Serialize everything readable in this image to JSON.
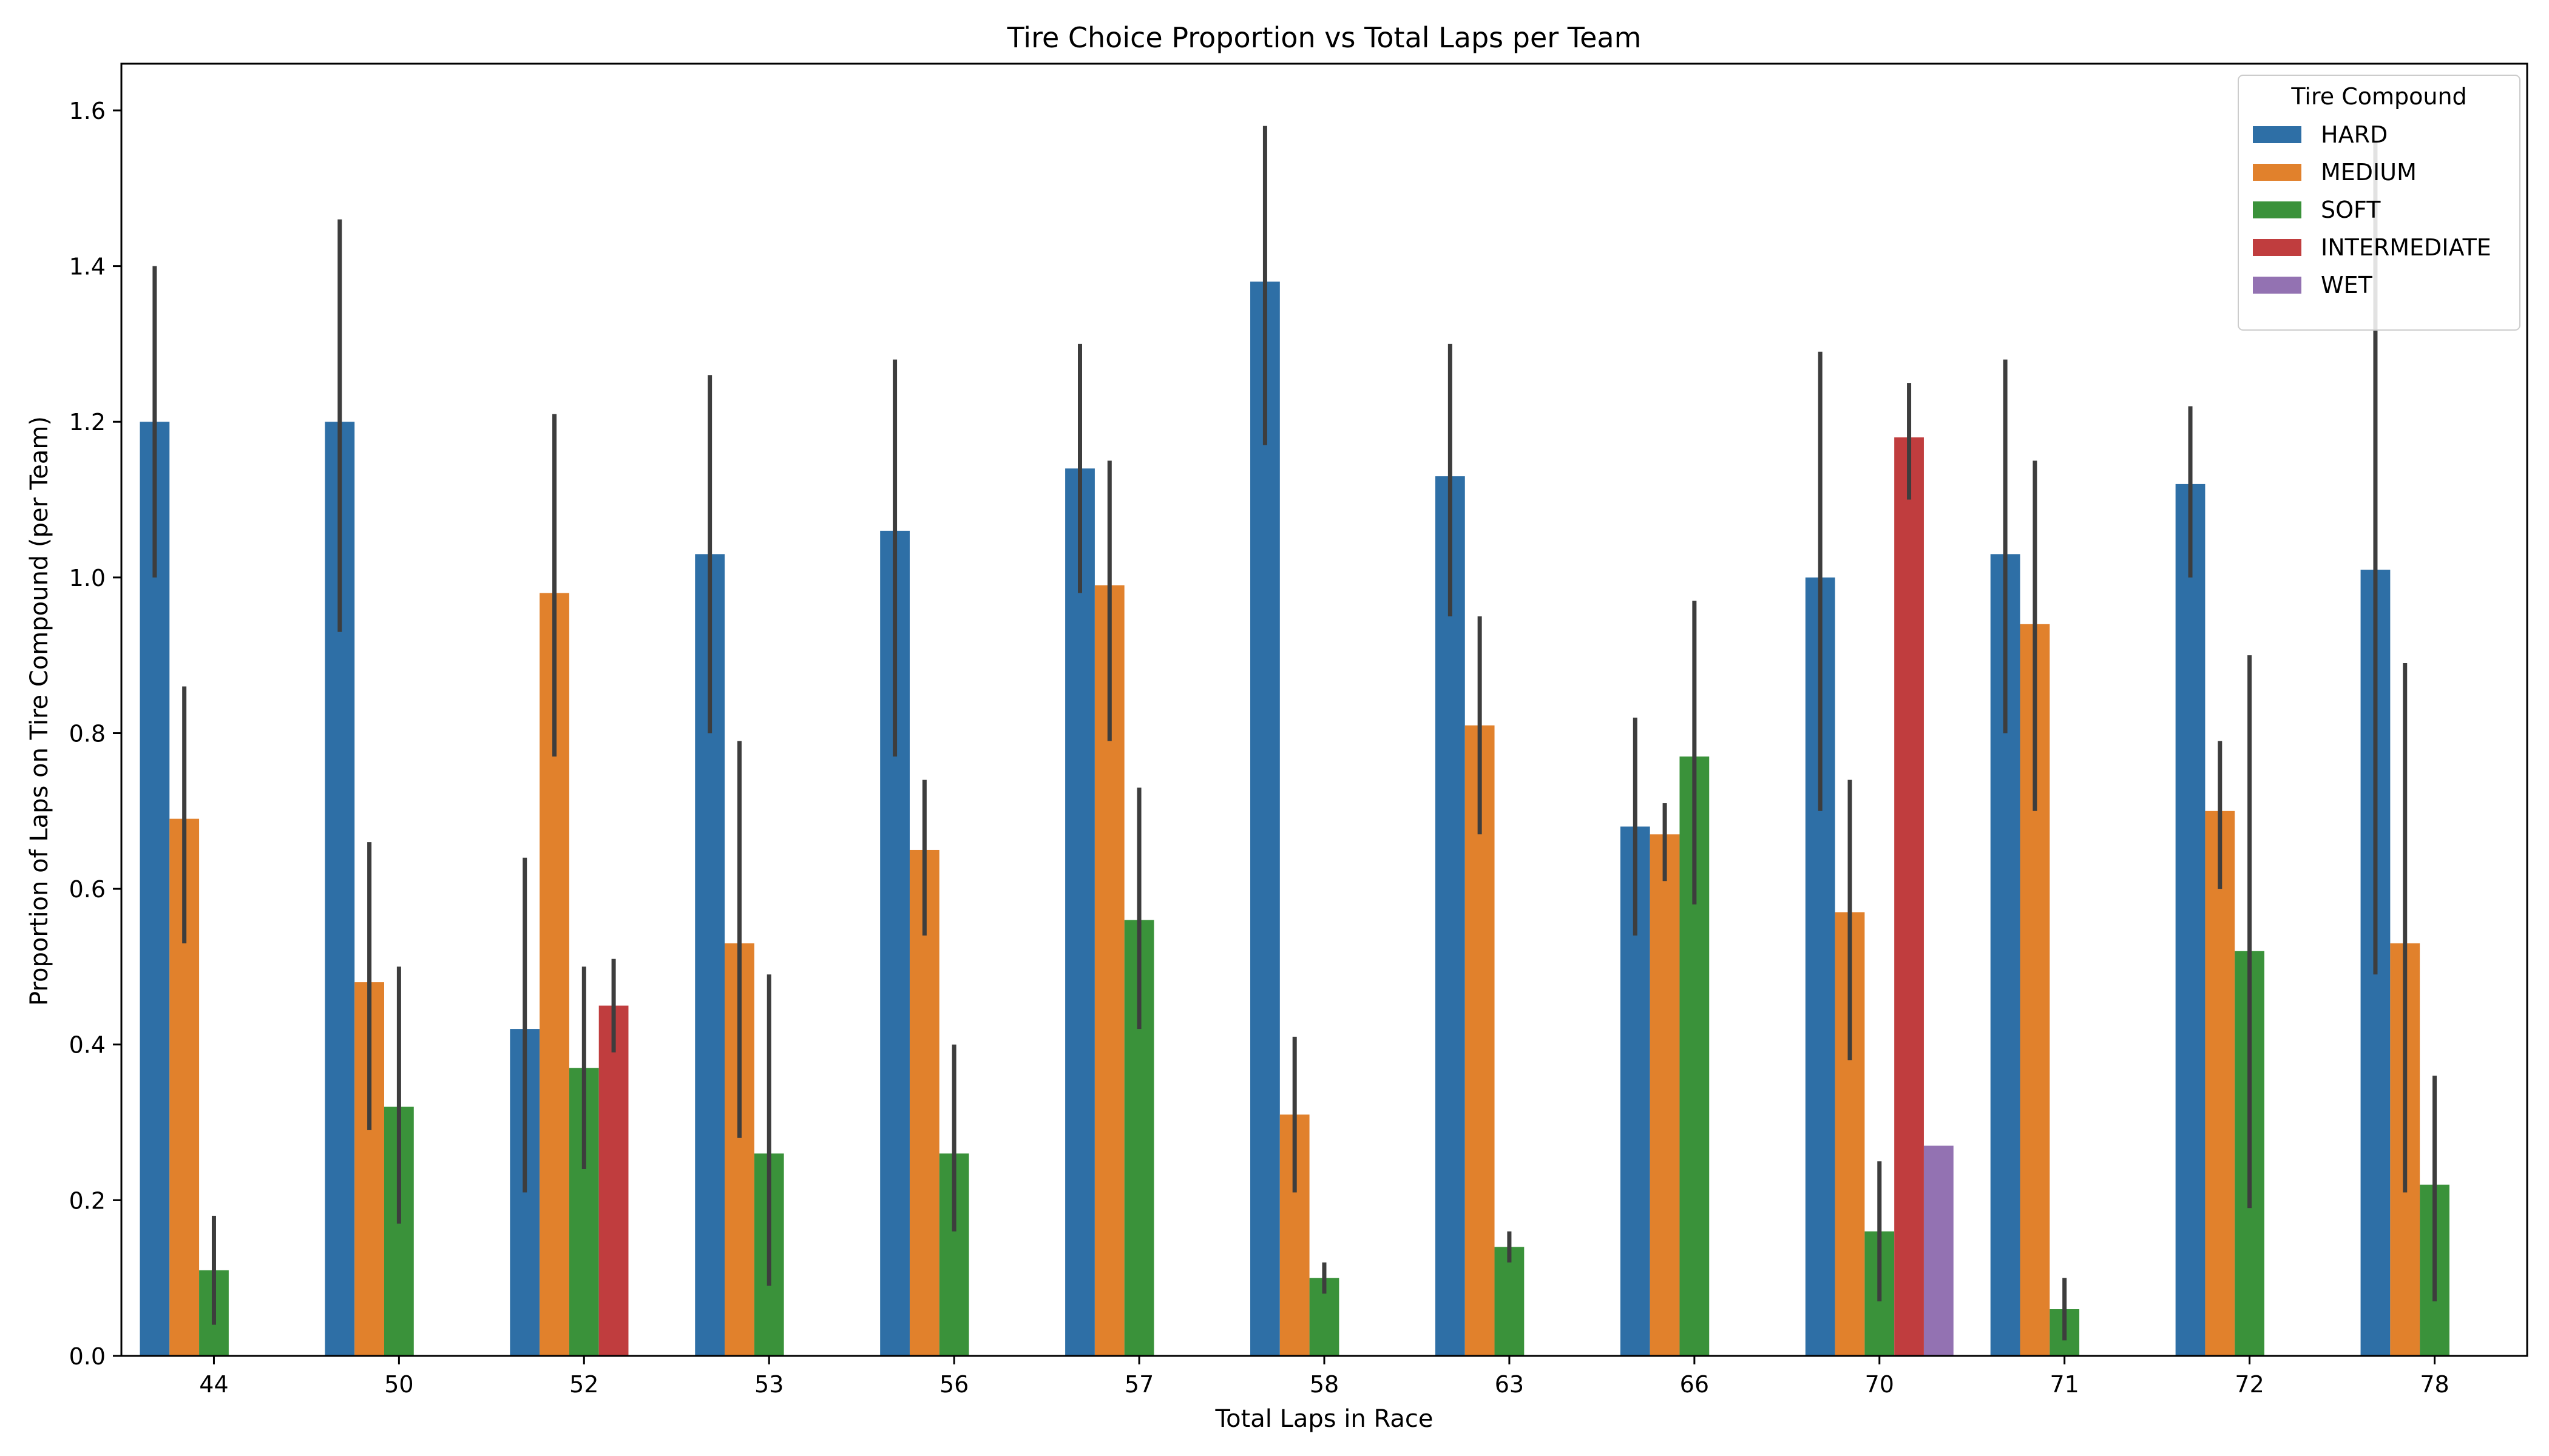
{
  "chart_data": {
    "type": "bar",
    "title": "Tire Choice Proportion vs Total Laps per Team",
    "xlabel": "Total Laps in Race",
    "ylabel": "Proportion of Laps on Tire Compound (per Team)",
    "categories": [
      "44",
      "50",
      "52",
      "53",
      "56",
      "57",
      "58",
      "63",
      "66",
      "70",
      "71",
      "72",
      "78"
    ],
    "ylim": [
      0,
      1.66
    ],
    "yticks": [
      0.0,
      0.2,
      0.4,
      0.6,
      0.8,
      1.0,
      1.2,
      1.4,
      1.6
    ],
    "ytick_labels": [
      "0.0",
      "0.2",
      "0.4",
      "0.6",
      "0.8",
      "1.0",
      "1.2",
      "1.4",
      "1.6"
    ],
    "legend": {
      "title": "Tire Compound",
      "position": "top-right"
    },
    "series": [
      {
        "name": "HARD",
        "color": "#2e6fa6",
        "values": [
          1.2,
          1.2,
          0.42,
          1.03,
          1.06,
          1.14,
          1.38,
          1.13,
          0.68,
          1.0,
          1.03,
          1.12,
          1.01
        ],
        "err_low": [
          1.0,
          0.93,
          0.21,
          0.8,
          0.77,
          0.98,
          1.17,
          0.95,
          0.54,
          0.7,
          0.8,
          1.0,
          0.49
        ],
        "err_high": [
          1.4,
          1.46,
          0.64,
          1.26,
          1.28,
          1.3,
          1.58,
          1.3,
          0.82,
          1.29,
          1.28,
          1.22,
          1.56
        ]
      },
      {
        "name": "MEDIUM",
        "color": "#e1812c",
        "values": [
          0.69,
          0.48,
          0.98,
          0.53,
          0.65,
          0.99,
          0.31,
          0.81,
          0.67,
          0.57,
          0.94,
          0.7,
          0.53
        ],
        "err_low": [
          0.53,
          0.29,
          0.77,
          0.28,
          0.54,
          0.79,
          0.21,
          0.67,
          0.61,
          0.38,
          0.7,
          0.6,
          0.21
        ],
        "err_high": [
          0.86,
          0.66,
          1.21,
          0.79,
          0.74,
          1.15,
          0.41,
          0.95,
          0.71,
          0.74,
          1.15,
          0.79,
          0.89
        ]
      },
      {
        "name": "SOFT",
        "color": "#3a923a",
        "values": [
          0.11,
          0.32,
          0.37,
          0.26,
          0.26,
          0.56,
          0.1,
          0.14,
          0.77,
          0.16,
          0.06,
          0.52,
          0.22
        ],
        "err_low": [
          0.04,
          0.17,
          0.24,
          0.09,
          0.16,
          0.42,
          0.08,
          0.12,
          0.58,
          0.07,
          0.02,
          0.19,
          0.07
        ],
        "err_high": [
          0.18,
          0.5,
          0.5,
          0.49,
          0.4,
          0.73,
          0.12,
          0.16,
          0.97,
          0.25,
          0.1,
          0.9,
          0.36
        ]
      },
      {
        "name": "INTERMEDIATE",
        "color": "#c03d3e",
        "values": [
          null,
          null,
          0.45,
          null,
          null,
          null,
          null,
          null,
          null,
          1.18,
          null,
          null,
          null
        ],
        "err_low": [
          null,
          null,
          0.39,
          null,
          null,
          null,
          null,
          null,
          null,
          1.1,
          null,
          null,
          null
        ],
        "err_high": [
          null,
          null,
          0.51,
          null,
          null,
          null,
          null,
          null,
          null,
          1.25,
          null,
          null,
          null
        ]
      },
      {
        "name": "WET",
        "color": "#9372b2",
        "values": [
          null,
          null,
          null,
          null,
          null,
          null,
          null,
          null,
          null,
          0.27,
          null,
          null,
          null
        ],
        "err_low": [
          null,
          null,
          null,
          null,
          null,
          null,
          null,
          null,
          null,
          null,
          null,
          null,
          null
        ],
        "err_high": [
          null,
          null,
          null,
          null,
          null,
          null,
          null,
          null,
          null,
          null,
          null,
          null,
          null
        ]
      }
    ]
  }
}
